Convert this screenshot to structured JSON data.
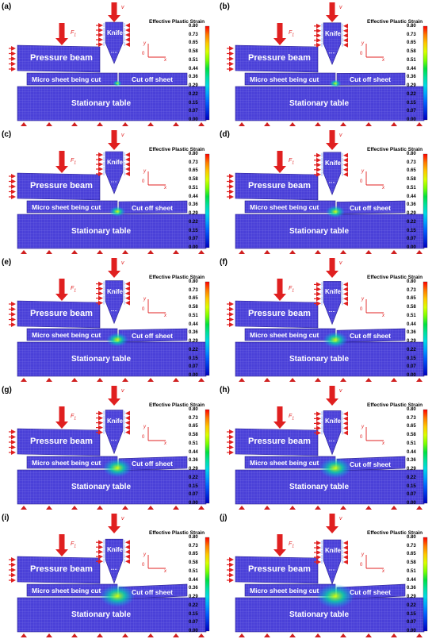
{
  "figure": {
    "colorbar_title": "Effective Plastic Strain",
    "colorbar_ticks": [
      "0.80",
      "0.73",
      "0.65",
      "0.58",
      "0.51",
      "0.44",
      "0.36",
      "0.29",
      "0.22",
      "0.15",
      "0.07",
      "0.00"
    ],
    "colorbar_colors": [
      "#ff0000",
      "#ff7a00",
      "#ffc800",
      "#d8ff00",
      "#7aff00",
      "#00e040",
      "#00e0a0",
      "#00d8e8",
      "#00a0ff",
      "#0060ff",
      "#0030e0",
      "#0000c0"
    ],
    "mesh_color": "#4a40d8",
    "force_arrow_color": "#e02020",
    "support_color": "#d02020",
    "labels": {
      "pressure_beam": "Pressure beam",
      "knife": "Knife",
      "micro_sheet": "Micro sheet being cut",
      "cut_off_sheet": "Cut off sheet",
      "table": "Stationary table",
      "force": "F",
      "force_sub": "1",
      "velocity": "v",
      "axis_y": "y",
      "axis_x": "x",
      "axis_origin": "0"
    },
    "panels": [
      {
        "label": "(a)",
        "cut_progress": 0.0
      },
      {
        "label": "(b)",
        "cut_progress": 0.1
      },
      {
        "label": "(c)",
        "cut_progress": 0.25
      },
      {
        "label": "(d)",
        "cut_progress": 0.35
      },
      {
        "label": "(e)",
        "cut_progress": 0.45
      },
      {
        "label": "(f)",
        "cut_progress": 0.55
      },
      {
        "label": "(g)",
        "cut_progress": 0.7
      },
      {
        "label": "(h)",
        "cut_progress": 0.8
      },
      {
        "label": "(i)",
        "cut_progress": 0.9
      },
      {
        "label": "(j)",
        "cut_progress": 1.0
      }
    ]
  }
}
